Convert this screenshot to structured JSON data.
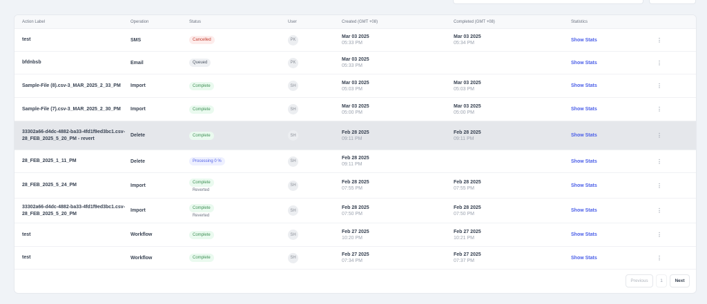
{
  "columns": [
    "Action Label",
    "Operation",
    "Status",
    "User",
    "Created (GMT +08)",
    "Completed (GMT +08)",
    "Statistics"
  ],
  "rows": [
    {
      "label": "test",
      "operation": "SMS",
      "status": "Cancelled",
      "status_color": "red",
      "sub": "",
      "user": "PK",
      "created_date": "Mar 03 2025",
      "created_time": "05:33 PM",
      "completed_date": "Mar 03 2025",
      "completed_time": "05:34 PM",
      "stats": "Show Stats"
    },
    {
      "label": "bfdnbsb",
      "operation": "Email",
      "status": "Queued",
      "status_color": "gray",
      "sub": "",
      "user": "PK",
      "created_date": "Mar 03 2025",
      "created_time": "05:33 PM",
      "completed_date": "",
      "completed_time": "",
      "stats": "Show Stats"
    },
    {
      "label": "Sample-File (8).csv-3_MAR_2025_2_33_PM",
      "operation": "Import",
      "status": "Complete",
      "status_color": "green",
      "sub": "",
      "user": "SH",
      "created_date": "Mar 03 2025",
      "created_time": "05:03 PM",
      "completed_date": "Mar 03 2025",
      "completed_time": "05:03 PM",
      "stats": "Show Stats"
    },
    {
      "label": "Sample-File (7).csv-3_MAR_2025_2_30_PM",
      "operation": "Import",
      "status": "Complete",
      "status_color": "green",
      "sub": "",
      "user": "SH",
      "created_date": "Mar 03 2025",
      "created_time": "05:00 PM",
      "completed_date": "Mar 03 2025",
      "completed_time": "05:00 PM",
      "stats": "Show Stats"
    },
    {
      "label": "33302a66-d4dc-4882-ba33-4fd1f9ed3bc1.csv-28_FEB_2025_5_20_PM - revert",
      "operation": "Delete",
      "status": "Complete",
      "status_color": "green",
      "sub": "",
      "user": "SH",
      "created_date": "Feb 28 2025",
      "created_time": "09:11 PM",
      "completed_date": "Feb 28 2025",
      "completed_time": "09:11 PM",
      "stats": "Show Stats",
      "highlight": true
    },
    {
      "label": "28_FEB_2025_1_11_PM",
      "operation": "Delete",
      "status": "Processing 0 %",
      "status_color": "blue",
      "sub": "",
      "user": "SH",
      "created_date": "Feb 28 2025",
      "created_time": "09:11 PM",
      "completed_date": "",
      "completed_time": "",
      "stats": "Show Stats"
    },
    {
      "label": "28_FEB_2025_5_24_PM",
      "operation": "Import",
      "status": "Complete",
      "status_color": "green",
      "sub": "Reverted",
      "user": "SH",
      "created_date": "Feb 28 2025",
      "created_time": "07:55 PM",
      "completed_date": "Feb 28 2025",
      "completed_time": "07:55 PM",
      "stats": "Show Stats"
    },
    {
      "label": "33302a66-d4dc-4882-ba33-4fd1f9ed3bc1.csv-28_FEB_2025_5_20_PM",
      "operation": "Import",
      "status": "Complete",
      "status_color": "green",
      "sub": "Reverted",
      "user": "SH",
      "created_date": "Feb 28 2025",
      "created_time": "07:50 PM",
      "completed_date": "Feb 28 2025",
      "completed_time": "07:50 PM",
      "stats": "Show Stats"
    },
    {
      "label": "test",
      "operation": "Workflow",
      "status": "Complete",
      "status_color": "green",
      "sub": "",
      "user": "SH",
      "created_date": "Feb 27 2025",
      "created_time": "10:20 PM",
      "completed_date": "Feb 27 2025",
      "completed_time": "10:21 PM",
      "stats": "Show Stats"
    },
    {
      "label": "test",
      "operation": "Workflow",
      "status": "Complete",
      "status_color": "green",
      "sub": "",
      "user": "SH",
      "created_date": "Feb 27 2025",
      "created_time": "07:34 PM",
      "completed_date": "Feb 27 2025",
      "completed_time": "07:37 PM",
      "stats": "Show Stats"
    }
  ],
  "pagination": {
    "previous": "Previous",
    "page": "1",
    "next": "Next"
  },
  "kebab_icon": "⋮"
}
